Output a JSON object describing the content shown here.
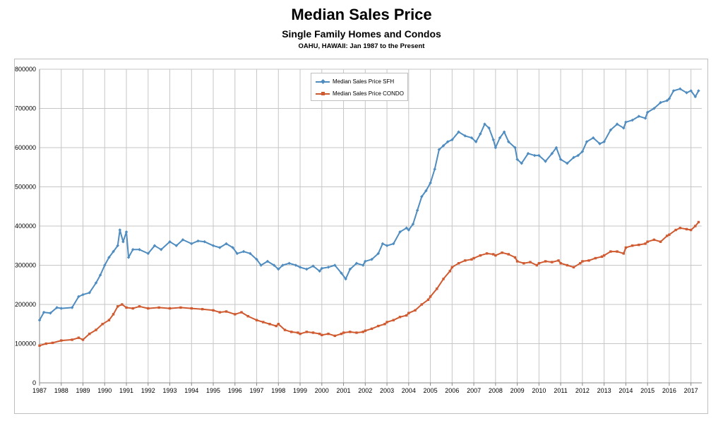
{
  "header": {
    "title": "Median Sales Price",
    "subtitle": "Single Family Homes and Condos",
    "subsubtitle": "OAHU, HAWAII: Jan 1987 to the Present"
  },
  "chart_data": {
    "type": "line",
    "title": "Median Sales Price",
    "subtitle": "Single Family Homes and Condos",
    "xlabel": "",
    "ylabel": "",
    "xlim": [
      1987.0,
      2017.5
    ],
    "ylim": [
      0,
      800000
    ],
    "x_ticks": [
      "1987",
      "1988",
      "1989",
      "1990",
      "1991",
      "1992",
      "1993",
      "1994",
      "1995",
      "1996",
      "1997",
      "1998",
      "1999",
      "2000",
      "2001",
      "2002",
      "2003",
      "2004",
      "2005",
      "2006",
      "2007",
      "2008",
      "2009",
      "2010",
      "2011",
      "2012",
      "2013",
      "2014",
      "2015",
      "2016",
      "2017"
    ],
    "y_ticks": [
      "0",
      "100000",
      "200000",
      "300000",
      "400000",
      "500000",
      "600000",
      "700000",
      "800000"
    ],
    "grid": true,
    "legend_position": "top-center",
    "series": [
      {
        "name": "Median Sales Price SFH",
        "color": "#4f8cc0",
        "marker": "diamond",
        "points": [
          [
            1987.0,
            160000
          ],
          [
            1987.2,
            180000
          ],
          [
            1987.5,
            178000
          ],
          [
            1987.8,
            192000
          ],
          [
            1988.0,
            190000
          ],
          [
            1988.5,
            192000
          ],
          [
            1988.8,
            220000
          ],
          [
            1989.0,
            225000
          ],
          [
            1989.3,
            230000
          ],
          [
            1989.6,
            255000
          ],
          [
            1989.8,
            275000
          ],
          [
            1990.0,
            300000
          ],
          [
            1990.2,
            320000
          ],
          [
            1990.4,
            335000
          ],
          [
            1990.6,
            350000
          ],
          [
            1990.7,
            390000
          ],
          [
            1990.85,
            360000
          ],
          [
            1991.0,
            385000
          ],
          [
            1991.1,
            320000
          ],
          [
            1991.3,
            340000
          ],
          [
            1991.6,
            340000
          ],
          [
            1992.0,
            330000
          ],
          [
            1992.3,
            350000
          ],
          [
            1992.6,
            340000
          ],
          [
            1993.0,
            360000
          ],
          [
            1993.3,
            350000
          ],
          [
            1993.6,
            365000
          ],
          [
            1994.0,
            355000
          ],
          [
            1994.3,
            362000
          ],
          [
            1994.6,
            360000
          ],
          [
            1995.0,
            350000
          ],
          [
            1995.3,
            345000
          ],
          [
            1995.6,
            355000
          ],
          [
            1995.9,
            345000
          ],
          [
            1996.1,
            330000
          ],
          [
            1996.4,
            335000
          ],
          [
            1996.7,
            330000
          ],
          [
            1997.0,
            315000
          ],
          [
            1997.2,
            300000
          ],
          [
            1997.5,
            310000
          ],
          [
            1997.8,
            300000
          ],
          [
            1998.0,
            290000
          ],
          [
            1998.2,
            300000
          ],
          [
            1998.5,
            305000
          ],
          [
            1998.8,
            300000
          ],
          [
            1999.0,
            295000
          ],
          [
            1999.3,
            290000
          ],
          [
            1999.6,
            298000
          ],
          [
            1999.9,
            285000
          ],
          [
            2000.0,
            292000
          ],
          [
            2000.3,
            295000
          ],
          [
            2000.6,
            300000
          ],
          [
            2000.9,
            280000
          ],
          [
            2001.1,
            265000
          ],
          [
            2001.3,
            290000
          ],
          [
            2001.6,
            305000
          ],
          [
            2001.9,
            300000
          ],
          [
            2002.0,
            310000
          ],
          [
            2002.3,
            315000
          ],
          [
            2002.6,
            330000
          ],
          [
            2002.8,
            355000
          ],
          [
            2003.0,
            350000
          ],
          [
            2003.3,
            355000
          ],
          [
            2003.6,
            385000
          ],
          [
            2003.9,
            395000
          ],
          [
            2004.0,
            390000
          ],
          [
            2004.2,
            405000
          ],
          [
            2004.4,
            440000
          ],
          [
            2004.6,
            475000
          ],
          [
            2004.8,
            490000
          ],
          [
            2005.0,
            510000
          ],
          [
            2005.2,
            545000
          ],
          [
            2005.4,
            595000
          ],
          [
            2005.6,
            605000
          ],
          [
            2005.8,
            615000
          ],
          [
            2006.0,
            620000
          ],
          [
            2006.3,
            640000
          ],
          [
            2006.6,
            630000
          ],
          [
            2006.9,
            625000
          ],
          [
            2007.1,
            615000
          ],
          [
            2007.3,
            635000
          ],
          [
            2007.5,
            660000
          ],
          [
            2007.7,
            650000
          ],
          [
            2007.9,
            620000
          ],
          [
            2008.0,
            600000
          ],
          [
            2008.2,
            625000
          ],
          [
            2008.4,
            640000
          ],
          [
            2008.6,
            615000
          ],
          [
            2008.9,
            600000
          ],
          [
            2009.0,
            570000
          ],
          [
            2009.2,
            560000
          ],
          [
            2009.5,
            585000
          ],
          [
            2009.8,
            580000
          ],
          [
            2010.0,
            580000
          ],
          [
            2010.3,
            565000
          ],
          [
            2010.6,
            585000
          ],
          [
            2010.8,
            600000
          ],
          [
            2011.0,
            570000
          ],
          [
            2011.3,
            560000
          ],
          [
            2011.6,
            575000
          ],
          [
            2011.8,
            580000
          ],
          [
            2012.0,
            590000
          ],
          [
            2012.2,
            615000
          ],
          [
            2012.5,
            625000
          ],
          [
            2012.8,
            610000
          ],
          [
            2013.0,
            615000
          ],
          [
            2013.3,
            645000
          ],
          [
            2013.6,
            660000
          ],
          [
            2013.9,
            650000
          ],
          [
            2014.0,
            665000
          ],
          [
            2014.3,
            670000
          ],
          [
            2014.6,
            680000
          ],
          [
            2014.9,
            675000
          ],
          [
            2015.0,
            690000
          ],
          [
            2015.3,
            700000
          ],
          [
            2015.6,
            715000
          ],
          [
            2015.9,
            720000
          ],
          [
            2016.0,
            725000
          ],
          [
            2016.2,
            745000
          ],
          [
            2016.5,
            750000
          ],
          [
            2016.8,
            740000
          ],
          [
            2017.0,
            745000
          ],
          [
            2017.2,
            730000
          ],
          [
            2017.35,
            745000
          ]
        ]
      },
      {
        "name": "Median Sales Price CONDO",
        "color": "#d05a30",
        "marker": "square",
        "points": [
          [
            1987.0,
            95000
          ],
          [
            1987.3,
            100000
          ],
          [
            1987.6,
            102000
          ],
          [
            1988.0,
            108000
          ],
          [
            1988.5,
            110000
          ],
          [
            1988.8,
            115000
          ],
          [
            1989.0,
            110000
          ],
          [
            1989.3,
            125000
          ],
          [
            1989.6,
            135000
          ],
          [
            1989.9,
            150000
          ],
          [
            1990.2,
            160000
          ],
          [
            1990.4,
            175000
          ],
          [
            1990.6,
            195000
          ],
          [
            1990.8,
            200000
          ],
          [
            1991.0,
            192000
          ],
          [
            1991.3,
            190000
          ],
          [
            1991.6,
            195000
          ],
          [
            1992.0,
            190000
          ],
          [
            1992.5,
            192000
          ],
          [
            1993.0,
            190000
          ],
          [
            1993.5,
            192000
          ],
          [
            1994.0,
            190000
          ],
          [
            1994.5,
            188000
          ],
          [
            1995.0,
            185000
          ],
          [
            1995.3,
            180000
          ],
          [
            1995.6,
            182000
          ],
          [
            1996.0,
            175000
          ],
          [
            1996.3,
            180000
          ],
          [
            1996.6,
            170000
          ],
          [
            1997.0,
            160000
          ],
          [
            1997.3,
            155000
          ],
          [
            1997.6,
            150000
          ],
          [
            1997.9,
            145000
          ],
          [
            1998.0,
            150000
          ],
          [
            1998.3,
            135000
          ],
          [
            1998.6,
            130000
          ],
          [
            1998.9,
            128000
          ],
          [
            1999.0,
            125000
          ],
          [
            1999.3,
            130000
          ],
          [
            1999.6,
            128000
          ],
          [
            1999.9,
            125000
          ],
          [
            2000.0,
            122000
          ],
          [
            2000.3,
            125000
          ],
          [
            2000.6,
            120000
          ],
          [
            2000.9,
            125000
          ],
          [
            2001.0,
            128000
          ],
          [
            2001.3,
            130000
          ],
          [
            2001.6,
            128000
          ],
          [
            2001.9,
            130000
          ],
          [
            2002.0,
            133000
          ],
          [
            2002.3,
            138000
          ],
          [
            2002.6,
            145000
          ],
          [
            2002.9,
            150000
          ],
          [
            2003.0,
            155000
          ],
          [
            2003.3,
            160000
          ],
          [
            2003.6,
            168000
          ],
          [
            2003.9,
            172000
          ],
          [
            2004.0,
            178000
          ],
          [
            2004.3,
            185000
          ],
          [
            2004.6,
            200000
          ],
          [
            2004.9,
            212000
          ],
          [
            2005.0,
            220000
          ],
          [
            2005.3,
            240000
          ],
          [
            2005.6,
            265000
          ],
          [
            2005.9,
            285000
          ],
          [
            2006.0,
            295000
          ],
          [
            2006.3,
            305000
          ],
          [
            2006.6,
            312000
          ],
          [
            2006.9,
            315000
          ],
          [
            2007.0,
            318000
          ],
          [
            2007.3,
            325000
          ],
          [
            2007.6,
            330000
          ],
          [
            2007.9,
            328000
          ],
          [
            2008.0,
            325000
          ],
          [
            2008.3,
            332000
          ],
          [
            2008.6,
            328000
          ],
          [
            2008.9,
            320000
          ],
          [
            2009.0,
            310000
          ],
          [
            2009.3,
            305000
          ],
          [
            2009.6,
            308000
          ],
          [
            2009.9,
            300000
          ],
          [
            2010.0,
            305000
          ],
          [
            2010.3,
            310000
          ],
          [
            2010.6,
            308000
          ],
          [
            2010.9,
            312000
          ],
          [
            2011.0,
            305000
          ],
          [
            2011.3,
            300000
          ],
          [
            2011.6,
            295000
          ],
          [
            2011.9,
            305000
          ],
          [
            2012.0,
            310000
          ],
          [
            2012.3,
            312000
          ],
          [
            2012.6,
            318000
          ],
          [
            2012.9,
            322000
          ],
          [
            2013.0,
            325000
          ],
          [
            2013.3,
            335000
          ],
          [
            2013.6,
            335000
          ],
          [
            2013.9,
            330000
          ],
          [
            2014.0,
            345000
          ],
          [
            2014.3,
            350000
          ],
          [
            2014.6,
            352000
          ],
          [
            2014.9,
            355000
          ],
          [
            2015.0,
            360000
          ],
          [
            2015.3,
            365000
          ],
          [
            2015.6,
            360000
          ],
          [
            2015.9,
            375000
          ],
          [
            2016.0,
            378000
          ],
          [
            2016.3,
            390000
          ],
          [
            2016.5,
            395000
          ],
          [
            2016.8,
            392000
          ],
          [
            2017.0,
            390000
          ],
          [
            2017.2,
            400000
          ],
          [
            2017.35,
            410000
          ]
        ]
      }
    ]
  }
}
